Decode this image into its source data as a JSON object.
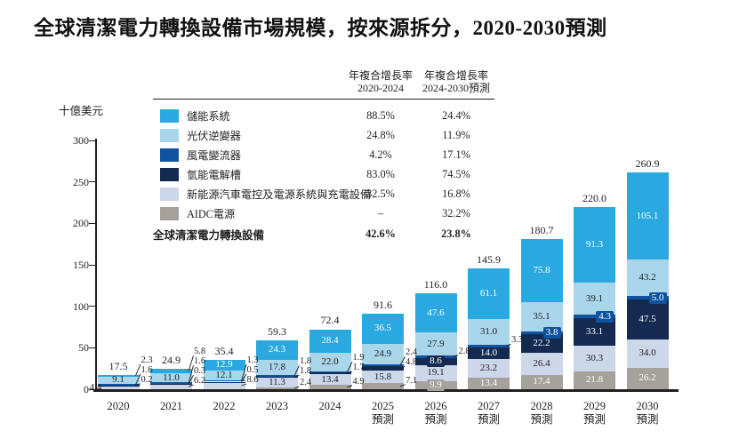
{
  "chart_data": {
    "type": "bar",
    "stacked": true,
    "title": "全球清潔電力轉換設備市場規模，按來源拆分，2020-2030預測",
    "unit_label": "十億美元",
    "ylabel": "十億美元",
    "ylim": [
      0,
      300
    ],
    "yticks": [
      0,
      50,
      100,
      150,
      200,
      250,
      300
    ],
    "grid": false,
    "legend_position": "top-left-overlay",
    "series_order_bottom_to_top": [
      "aidc",
      "nev",
      "h2",
      "wind",
      "pv",
      "storage"
    ],
    "series_meta": {
      "storage": {
        "label": "儲能系統",
        "color": "#29a9e0",
        "text_color": "#ffffff"
      },
      "pv": {
        "label": "光伏逆變器",
        "color": "#a9d6eb",
        "text_color": "#231f20"
      },
      "wind": {
        "label": "風電變流器",
        "color": "#10539f",
        "text_color": "#ffffff"
      },
      "h2": {
        "label": "氫能電解槽",
        "color": "#142a50",
        "text_color": "#ffffff"
      },
      "nev": {
        "label": "新能源汽車電控及電源系統與充電設備",
        "color": "#ccd7e9",
        "text_color": "#231f20"
      },
      "aidc": {
        "label": "AIDC電源",
        "color": "#a6a19b",
        "text_color": "#ffffff"
      }
    },
    "legend": {
      "col1_header_line1": "年複合增長率",
      "col1_header_line2": "2020-2024",
      "col2_header_line1": "年複合增長率",
      "col2_header_line2": "2024-2030預測",
      "rows": [
        {
          "id": "storage",
          "label": "儲能系統",
          "cagr1": "88.5%",
          "cagr2": "24.4%"
        },
        {
          "id": "pv",
          "label": "光伏逆變器",
          "cagr1": "24.8%",
          "cagr2": "11.9%"
        },
        {
          "id": "wind",
          "label": "風電變流器",
          "cagr1": "4.2%",
          "cagr2": "17.1%"
        },
        {
          "id": "h2",
          "label": "氫能電解槽",
          "cagr1": "83.0%",
          "cagr2": "74.5%"
        },
        {
          "id": "nev",
          "label": "新能源汽車電控及電源系統與充電設備",
          "cagr1": "32.5%",
          "cagr2": "16.8%"
        },
        {
          "id": "aidc",
          "label": "AIDC電源",
          "cagr1": "–",
          "cagr2": "32.2%"
        }
      ],
      "total_row": {
        "label": "全球清潔電力轉換設備",
        "cagr1": "42.6%",
        "cagr2": "23.8%"
      }
    },
    "years": [
      {
        "label": "2020",
        "sub": "",
        "total": 17.5,
        "values": {
          "aidc": 0,
          "nev": 4.4,
          "h2": 0.2,
          "wind": 1.6,
          "pv": 9.1,
          "storage": 2.3
        },
        "placement": {
          "nev": "left",
          "h2": "callout",
          "wind": "callout",
          "pv": "inside",
          "storage": "callout"
        }
      },
      {
        "label": "2021",
        "sub": "",
        "total": 24.9,
        "values": {
          "aidc": 0,
          "nev": 6.2,
          "h2": 0.3,
          "wind": 1.6,
          "pv": 11.0,
          "storage": 5.8
        },
        "placement": {
          "nev": "callout",
          "h2": "callout",
          "wind": "callout",
          "pv": "inside",
          "storage": "callout"
        }
      },
      {
        "label": "2022",
        "sub": "",
        "total": 35.4,
        "values": {
          "aidc": 0,
          "nev": 8.6,
          "h2": 0.5,
          "wind": 1.3,
          "pv": 12.1,
          "storage": 12.9
        },
        "placement": {
          "nev": "callout",
          "h2": "callout",
          "wind": "callout",
          "pv": "inside",
          "storage": "inside"
        }
      },
      {
        "label": "2023",
        "sub": "",
        "total": 59.3,
        "values": {
          "aidc": 2.4,
          "nev": 11.3,
          "h2": 1.8,
          "wind": 1.8,
          "pv": 17.8,
          "storage": 24.3
        },
        "placement": {
          "aidc": "callout",
          "nev": "inside",
          "h2": "callout",
          "wind": "callout",
          "pv": "inside",
          "storage": "inside"
        }
      },
      {
        "label": "2024",
        "sub": "",
        "total": 72.4,
        "values": {
          "aidc": 4.9,
          "nev": 13.4,
          "h2": 1.7,
          "wind": 1.9,
          "pv": 22.0,
          "storage": 28.4
        },
        "placement": {
          "aidc": "callout",
          "nev": "inside",
          "h2": "callout",
          "wind": "callout",
          "pv": "inside",
          "storage": "inside"
        }
      },
      {
        "label": "2025",
        "sub": "預測",
        "total": 91.6,
        "values": {
          "aidc": 7.1,
          "nev": 15.8,
          "h2": 4.8,
          "wind": 2.4,
          "pv": 24.9,
          "storage": 36.5
        },
        "placement": {
          "aidc": "callout",
          "nev": "inside",
          "h2": "callout",
          "wind": "callout",
          "pv": "inside",
          "storage": "inside"
        }
      },
      {
        "label": "2026",
        "sub": "預測",
        "total": 116.0,
        "values": {
          "aidc": 9.9,
          "nev": 19.1,
          "h2": 8.6,
          "wind": 2.8,
          "pv": 27.9,
          "storage": 47.6
        },
        "placement": {
          "aidc": "inside",
          "nev": "inside",
          "h2": "inside",
          "wind": "callout",
          "pv": "inside",
          "storage": "inside"
        }
      },
      {
        "label": "2027",
        "sub": "預測",
        "total": 145.9,
        "values": {
          "aidc": 13.4,
          "nev": 23.2,
          "h2": 14.0,
          "wind": 3.3,
          "pv": 31.0,
          "storage": 61.1
        },
        "placement": {
          "aidc": "inside",
          "nev": "inside",
          "h2": "inside",
          "wind": "callout",
          "pv": "inside",
          "storage": "inside"
        }
      },
      {
        "label": "2028",
        "sub": "預測",
        "total": 180.7,
        "values": {
          "aidc": 17.4,
          "nev": 26.4,
          "h2": 22.2,
          "wind": 3.8,
          "pv": 35.1,
          "storage": 75.8
        },
        "placement": {
          "aidc": "inside",
          "nev": "inside",
          "h2": "inside",
          "wind": "chip",
          "pv": "inside",
          "storage": "inside"
        }
      },
      {
        "label": "2029",
        "sub": "預測",
        "total": 220.0,
        "values": {
          "aidc": 21.8,
          "nev": 30.3,
          "h2": 33.1,
          "wind": 4.3,
          "pv": 39.1,
          "storage": 91.3
        },
        "placement": {
          "aidc": "inside",
          "nev": "inside",
          "h2": "inside",
          "wind": "chip",
          "pv": "inside",
          "storage": "inside"
        }
      },
      {
        "label": "2030",
        "sub": "預測",
        "total": 260.9,
        "values": {
          "aidc": 26.2,
          "nev": 34.0,
          "h2": 47.5,
          "wind": 5.0,
          "pv": 43.2,
          "storage": 105.1
        },
        "placement": {
          "aidc": "inside",
          "nev": "inside",
          "h2": "inside",
          "wind": "chip",
          "pv": "inside",
          "storage": "inside"
        }
      }
    ]
  }
}
